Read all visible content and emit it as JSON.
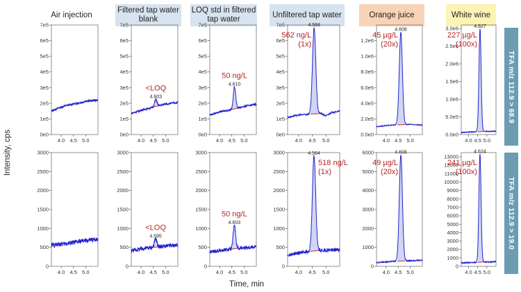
{
  "figure": {
    "ylabel": "Intensity, cps",
    "xlabel": "Time, min",
    "row_labels": [
      "TFA m/z 112.9 > 68.9",
      "TFA m/z 112.9 > 19.0"
    ]
  },
  "columns": [
    {
      "title": "Air injection",
      "style": "none"
    },
    {
      "title": "Filtered tap water blank",
      "style": "blue"
    },
    {
      "title": "LOQ std in filtered tap water",
      "style": "blue"
    },
    {
      "title": "Unfiltered tap water",
      "style": "blue"
    },
    {
      "title": "Orange juice",
      "style": "orange"
    },
    {
      "title": "White wine",
      "style": "yellow"
    }
  ],
  "chart_data": [
    {
      "type": "line",
      "sample": "Air injection",
      "transition": "TFA m/z 112.9 > 68.9",
      "xlim": [
        3.6,
        5.5
      ],
      "ylim": [
        0,
        700000
      ],
      "xticks": [
        4.0,
        4.5,
        5.0
      ],
      "xtick_labels": [
        "4.0",
        "4.5",
        "5.0"
      ],
      "yticks": [
        0,
        100000,
        200000,
        300000,
        400000,
        500000,
        600000,
        700000
      ],
      "ytick_labels": [
        "0e0",
        "1e5",
        "2e5",
        "3e5",
        "4e5",
        "5e5",
        "6e5",
        "7e5"
      ],
      "baseline": [
        [
          3.6,
          150000
        ],
        [
          3.9,
          170000
        ],
        [
          4.2,
          185000
        ],
        [
          4.5,
          195000
        ],
        [
          4.8,
          205000
        ],
        [
          5.1,
          215000
        ],
        [
          5.5,
          220000
        ]
      ],
      "noise": 7000,
      "peak": null
    },
    {
      "type": "line",
      "sample": "Filtered tap water blank",
      "transition": "TFA m/z 112.9 > 68.9",
      "xlim": [
        3.6,
        5.5
      ],
      "ylim": [
        0,
        700000
      ],
      "xticks": [
        4.0,
        4.5,
        5.0
      ],
      "xtick_labels": [
        "4.0",
        "4.5",
        "5.0"
      ],
      "yticks": [
        0,
        100000,
        200000,
        300000,
        400000,
        500000,
        600000,
        700000
      ],
      "ytick_labels": [
        "0e0",
        "1e5",
        "2e5",
        "3e5",
        "4e5",
        "5e5",
        "6e5",
        "7e5"
      ],
      "baseline": [
        [
          3.6,
          135000
        ],
        [
          4.0,
          155000
        ],
        [
          4.5,
          175000
        ],
        [
          5.0,
          195000
        ],
        [
          5.5,
          205000
        ]
      ],
      "noise": 6000,
      "peak": {
        "rt": 4.603,
        "rt_label": "4.603",
        "height": 45000,
        "width": 0.05,
        "integrated": true
      },
      "annotation": "<LOQ"
    },
    {
      "type": "line",
      "sample": "LOQ std in filtered tap water",
      "transition": "TFA m/z 112.9 > 68.9",
      "xlim": [
        3.6,
        5.5
      ],
      "ylim": [
        0,
        700000
      ],
      "xticks": [
        4.0,
        4.5,
        5.0
      ],
      "xtick_labels": [
        "4.0",
        "4.5",
        "5.0"
      ],
      "yticks": [
        0,
        100000,
        200000,
        300000,
        400000,
        500000,
        600000,
        700000
      ],
      "ytick_labels": [
        "0e0",
        "1e5",
        "2e5",
        "3e5",
        "4e5",
        "5e5",
        "6e5",
        "7e5"
      ],
      "baseline": [
        [
          3.6,
          125000
        ],
        [
          4.0,
          145000
        ],
        [
          4.5,
          160000
        ],
        [
          5.0,
          180000
        ],
        [
          5.5,
          195000
        ]
      ],
      "noise": 6000,
      "peak": {
        "rt": 4.61,
        "rt_label": "4.610",
        "height": 140000,
        "width": 0.05,
        "integrated": true
      },
      "annotation": "50 ng/L"
    },
    {
      "type": "line",
      "sample": "Unfiltered tap water",
      "transition": "TFA m/z 112.9 > 68.9",
      "xlim": [
        3.6,
        5.5
      ],
      "ylim": [
        0,
        700000
      ],
      "xticks": [
        4.0,
        4.5,
        5.0
      ],
      "xtick_labels": [
        "4.0",
        "4.5",
        "5.0"
      ],
      "yticks": [
        0,
        100000,
        200000,
        300000,
        400000,
        500000,
        600000,
        700000
      ],
      "ytick_labels": [
        "0e0",
        "1e5",
        "2e5",
        "3e5",
        "4e5",
        "5e5",
        "6e5",
        "7e5"
      ],
      "baseline": [
        [
          3.6,
          110000
        ],
        [
          4.0,
          125000
        ],
        [
          4.4,
          130000
        ],
        [
          4.8,
          135000
        ],
        [
          5.0,
          120000
        ],
        [
          5.2,
          140000
        ],
        [
          5.5,
          150000
        ]
      ],
      "noise": 5000,
      "peak": {
        "rt": 4.568,
        "rt_label": "4.568",
        "height": 550000,
        "width": 0.06,
        "integrated": true
      },
      "annotation": "562 ng/L\n(1x)"
    },
    {
      "type": "line",
      "sample": "Orange juice",
      "transition": "TFA m/z 112.9 > 68.9",
      "xlim": [
        3.6,
        5.5
      ],
      "ylim": [
        0,
        1400000
      ],
      "xticks": [
        4.0,
        4.5,
        5.0
      ],
      "xtick_labels": [
        "4.0",
        "4.5",
        "5.0"
      ],
      "yticks": [
        0,
        200000,
        400000,
        600000,
        800000,
        1000000,
        1200000
      ],
      "ytick_labels": [
        "0.0e0",
        "2.0e5",
        "4.0e5",
        "6.0e5",
        "8.0e5",
        "1.0e6",
        "1.2e6"
      ],
      "baseline": [
        [
          3.6,
          100000
        ],
        [
          4.0,
          115000
        ],
        [
          4.5,
          125000
        ],
        [
          5.0,
          130000
        ],
        [
          5.5,
          120000
        ]
      ],
      "noise": 5000,
      "peak": {
        "rt": 4.608,
        "rt_label": "4.608",
        "height": 1180000,
        "width": 0.065,
        "integrated": true
      },
      "annotation": "45 µg/L\n(20x)"
    },
    {
      "type": "line",
      "sample": "White wine",
      "transition": "TFA m/z 112.9 > 68.9",
      "xlim": [
        3.6,
        5.5
      ],
      "ylim": [
        0,
        3100000
      ],
      "xticks": [
        4.0,
        4.5,
        5.0
      ],
      "xtick_labels": [
        "4.0",
        "4.5",
        "5.0"
      ],
      "yticks": [
        0,
        500000,
        1000000,
        1500000,
        2000000,
        2500000,
        3000000
      ],
      "ytick_labels": [
        "0.0e0",
        "5.0e5",
        "1.0e6",
        "1.5e6",
        "2.0e6",
        "2.5e6",
        "3.0e6"
      ],
      "baseline": [
        [
          3.6,
          60000
        ],
        [
          4.0,
          70000
        ],
        [
          4.5,
          80000
        ],
        [
          5.0,
          90000
        ],
        [
          5.5,
          95000
        ]
      ],
      "noise": 8000,
      "peak": {
        "rt": 4.627,
        "rt_label": "4.627",
        "height": 2900000,
        "width": 0.06,
        "integrated": true
      },
      "annotation": "227 µg/L\n(100x)"
    },
    {
      "type": "line",
      "sample": "Air injection",
      "transition": "TFA m/z 112.9 > 19.0",
      "xlim": [
        3.6,
        5.5
      ],
      "ylim": [
        0,
        3000
      ],
      "xticks": [
        4.0,
        4.5,
        5.0
      ],
      "xtick_labels": [
        "4.0",
        "4.5",
        "5.0"
      ],
      "yticks": [
        0,
        500,
        1000,
        1500,
        2000,
        2500,
        3000
      ],
      "ytick_labels": [
        "0",
        "500",
        "1000",
        "1500",
        "2000",
        "2500",
        "3000"
      ],
      "baseline": [
        [
          3.6,
          560
        ],
        [
          4.2,
          600
        ],
        [
          4.8,
          660
        ],
        [
          5.5,
          720
        ]
      ],
      "noise": 60,
      "peak": null
    },
    {
      "type": "line",
      "sample": "Filtered tap water blank",
      "transition": "TFA m/z 112.9 > 19.0",
      "xlim": [
        3.6,
        5.5
      ],
      "ylim": [
        0,
        3000
      ],
      "xticks": [
        4.0,
        4.5,
        5.0
      ],
      "xtick_labels": [
        "4.0",
        "4.5",
        "5.0"
      ],
      "yticks": [
        0,
        500,
        1000,
        1500,
        2000,
        2500,
        3000
      ],
      "ytick_labels": [
        "0",
        "500",
        "1000",
        "1500",
        "2000",
        "2500",
        "3000"
      ],
      "baseline": [
        [
          3.6,
          420
        ],
        [
          4.2,
          480
        ],
        [
          4.8,
          520
        ],
        [
          5.5,
          560
        ]
      ],
      "noise": 55,
      "peak": {
        "rt": 4.595,
        "rt_label": "4.595",
        "height": 220,
        "width": 0.05,
        "integrated": true
      },
      "annotation": "<LOQ"
    },
    {
      "type": "line",
      "sample": "LOQ std in filtered tap water",
      "transition": "TFA m/z 112.9 > 19.0",
      "xlim": [
        3.6,
        5.5
      ],
      "ylim": [
        0,
        3000
      ],
      "xticks": [
        4.0,
        4.5,
        5.0
      ],
      "xtick_labels": [
        "4.0",
        "4.5",
        "5.0"
      ],
      "yticks": [
        0,
        500,
        1000,
        1500,
        2000,
        2500,
        3000
      ],
      "ytick_labels": [
        "0",
        "500",
        "1000",
        "1500",
        "2000",
        "2500",
        "3000"
      ],
      "baseline": [
        [
          3.6,
          380
        ],
        [
          4.2,
          430
        ],
        [
          4.8,
          480
        ],
        [
          5.5,
          520
        ]
      ],
      "noise": 50,
      "peak": {
        "rt": 4.603,
        "rt_label": "4.603",
        "height": 620,
        "width": 0.05,
        "integrated": true
      },
      "annotation": "50 ng/L"
    },
    {
      "type": "line",
      "sample": "Unfiltered tap water",
      "transition": "TFA m/z 112.9 > 19.0",
      "xlim": [
        3.6,
        5.5
      ],
      "ylim": [
        0,
        3000
      ],
      "xticks": [
        4.0,
        4.5,
        5.0
      ],
      "xtick_labels": [
        "4.0",
        "4.5",
        "5.0"
      ],
      "yticks": [
        0,
        500,
        1000,
        1500,
        2000,
        2500,
        3000
      ],
      "ytick_labels": [
        "0",
        "500",
        "1000",
        "1500",
        "2000",
        "2500",
        "3000"
      ],
      "baseline": [
        [
          3.6,
          300
        ],
        [
          4.2,
          380
        ],
        [
          4.8,
          420
        ],
        [
          5.5,
          440
        ]
      ],
      "noise": 50,
      "peak": {
        "rt": 4.564,
        "rt_label": "4.564",
        "height": 2500,
        "width": 0.06,
        "integrated": true
      },
      "annotation": "518 ng/L\n(1x)"
    },
    {
      "type": "line",
      "sample": "Orange juice",
      "transition": "TFA m/z 112.9 > 19.0",
      "xlim": [
        3.6,
        5.5
      ],
      "ylim": [
        0,
        6000
      ],
      "xticks": [
        4.0,
        4.5,
        5.0
      ],
      "xtick_labels": [
        "4.0",
        "4.5",
        "5.0"
      ],
      "yticks": [
        0,
        1000,
        2000,
        3000,
        4000,
        5000,
        6000
      ],
      "ytick_labels": [
        "0",
        "1000",
        "2000",
        "3000",
        "4000",
        "5000",
        "6000"
      ],
      "baseline": [
        [
          3.6,
          200
        ],
        [
          4.2,
          260
        ],
        [
          4.8,
          290
        ],
        [
          5.5,
          320
        ]
      ],
      "noise": 30,
      "peak": {
        "rt": 4.608,
        "rt_label": "4.608",
        "height": 5600,
        "width": 0.065,
        "integrated": true
      },
      "annotation": "49 µg/L\n(20x)"
    },
    {
      "type": "line",
      "sample": "White wine",
      "transition": "TFA m/z 112.9 > 19.0",
      "xlim": [
        3.6,
        5.5
      ],
      "ylim": [
        0,
        13500
      ],
      "xticks": [
        4.0,
        4.5,
        5.0
      ],
      "xtick_labels": [
        "4.0",
        "4.5",
        "5.0"
      ],
      "yticks": [
        0,
        1000,
        2000,
        3000,
        4000,
        5000,
        6000,
        7000,
        8000,
        9000,
        10000,
        11000,
        12000,
        13000
      ],
      "ytick_labels": [
        "0",
        "1000",
        "2000",
        "3000",
        "4000",
        "5000",
        "6000",
        "7000",
        "8000",
        "9000",
        "10000",
        "11000",
        "12000",
        "13000"
      ],
      "baseline": [
        [
          3.6,
          400
        ],
        [
          4.2,
          450
        ],
        [
          4.8,
          500
        ],
        [
          5.5,
          550
        ]
      ],
      "noise": 60,
      "peak": {
        "rt": 4.624,
        "rt_label": "4.624",
        "height": 12800,
        "width": 0.06,
        "integrated": true
      },
      "annotation": "241 µg/L\n(100x)"
    }
  ]
}
